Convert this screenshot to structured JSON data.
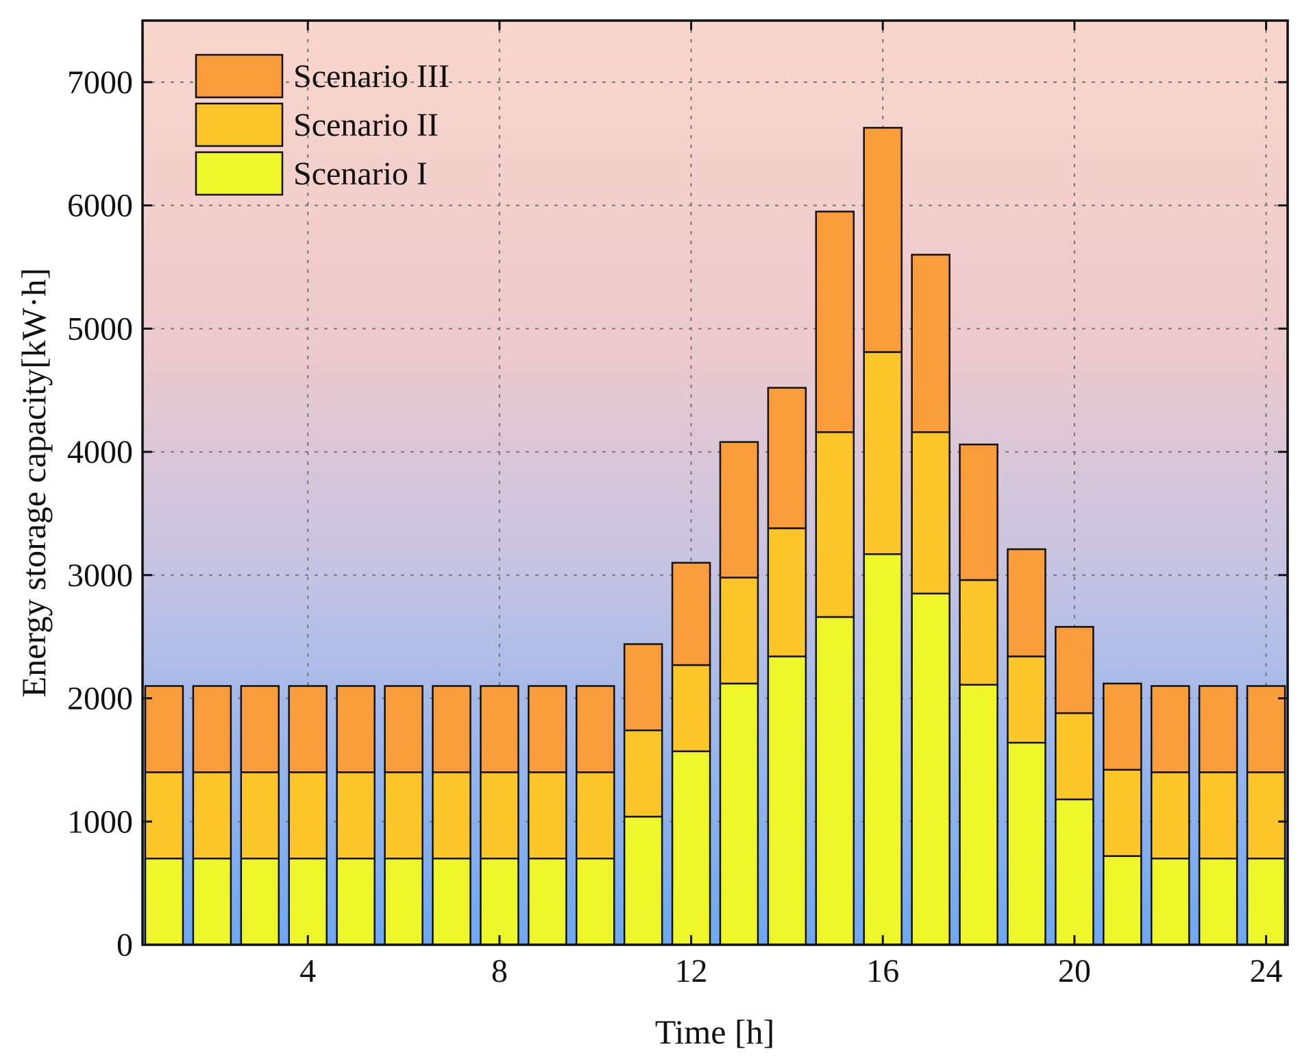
{
  "chart_data": {
    "type": "bar",
    "stacked": true,
    "title": "",
    "xlabel": "Time [h]",
    "ylabel": "Energy storage capacity[kW·h]",
    "x": [
      1,
      2,
      3,
      4,
      5,
      6,
      7,
      8,
      9,
      10,
      11,
      12,
      13,
      14,
      15,
      16,
      17,
      18,
      19,
      20,
      21,
      22,
      23,
      24
    ],
    "xlim": [
      0.55,
      24.45
    ],
    "ylim": [
      0,
      7500
    ],
    "xticks": [
      4,
      8,
      12,
      16,
      20,
      24
    ],
    "yticks": [
      0,
      1000,
      2000,
      3000,
      4000,
      5000,
      6000,
      7000
    ],
    "grid": true,
    "legend_position": "top-left",
    "background": {
      "top_color": "#f9d6cb",
      "bottom_color": "#6ea7f1"
    },
    "series": [
      {
        "name": "Scenario I",
        "color": "#eef529",
        "values": [
          700,
          700,
          700,
          700,
          700,
          700,
          700,
          700,
          700,
          700,
          1040,
          1570,
          2120,
          2340,
          2660,
          3170,
          2850,
          2110,
          1640,
          1180,
          720,
          700,
          700,
          700
        ]
      },
      {
        "name": "Scenario II",
        "color": "#fcc628",
        "values": [
          700,
          700,
          700,
          700,
          700,
          700,
          700,
          700,
          700,
          700,
          700,
          700,
          860,
          1040,
          1500,
          1640,
          1310,
          850,
          700,
          700,
          700,
          700,
          700,
          700
        ]
      },
      {
        "name": "Scenario III",
        "color": "#f99c3c",
        "values": [
          700,
          700,
          700,
          700,
          700,
          700,
          700,
          700,
          700,
          700,
          700,
          830,
          1100,
          1140,
          1790,
          1820,
          1440,
          1100,
          870,
          700,
          700,
          700,
          700,
          700
        ]
      }
    ]
  }
}
